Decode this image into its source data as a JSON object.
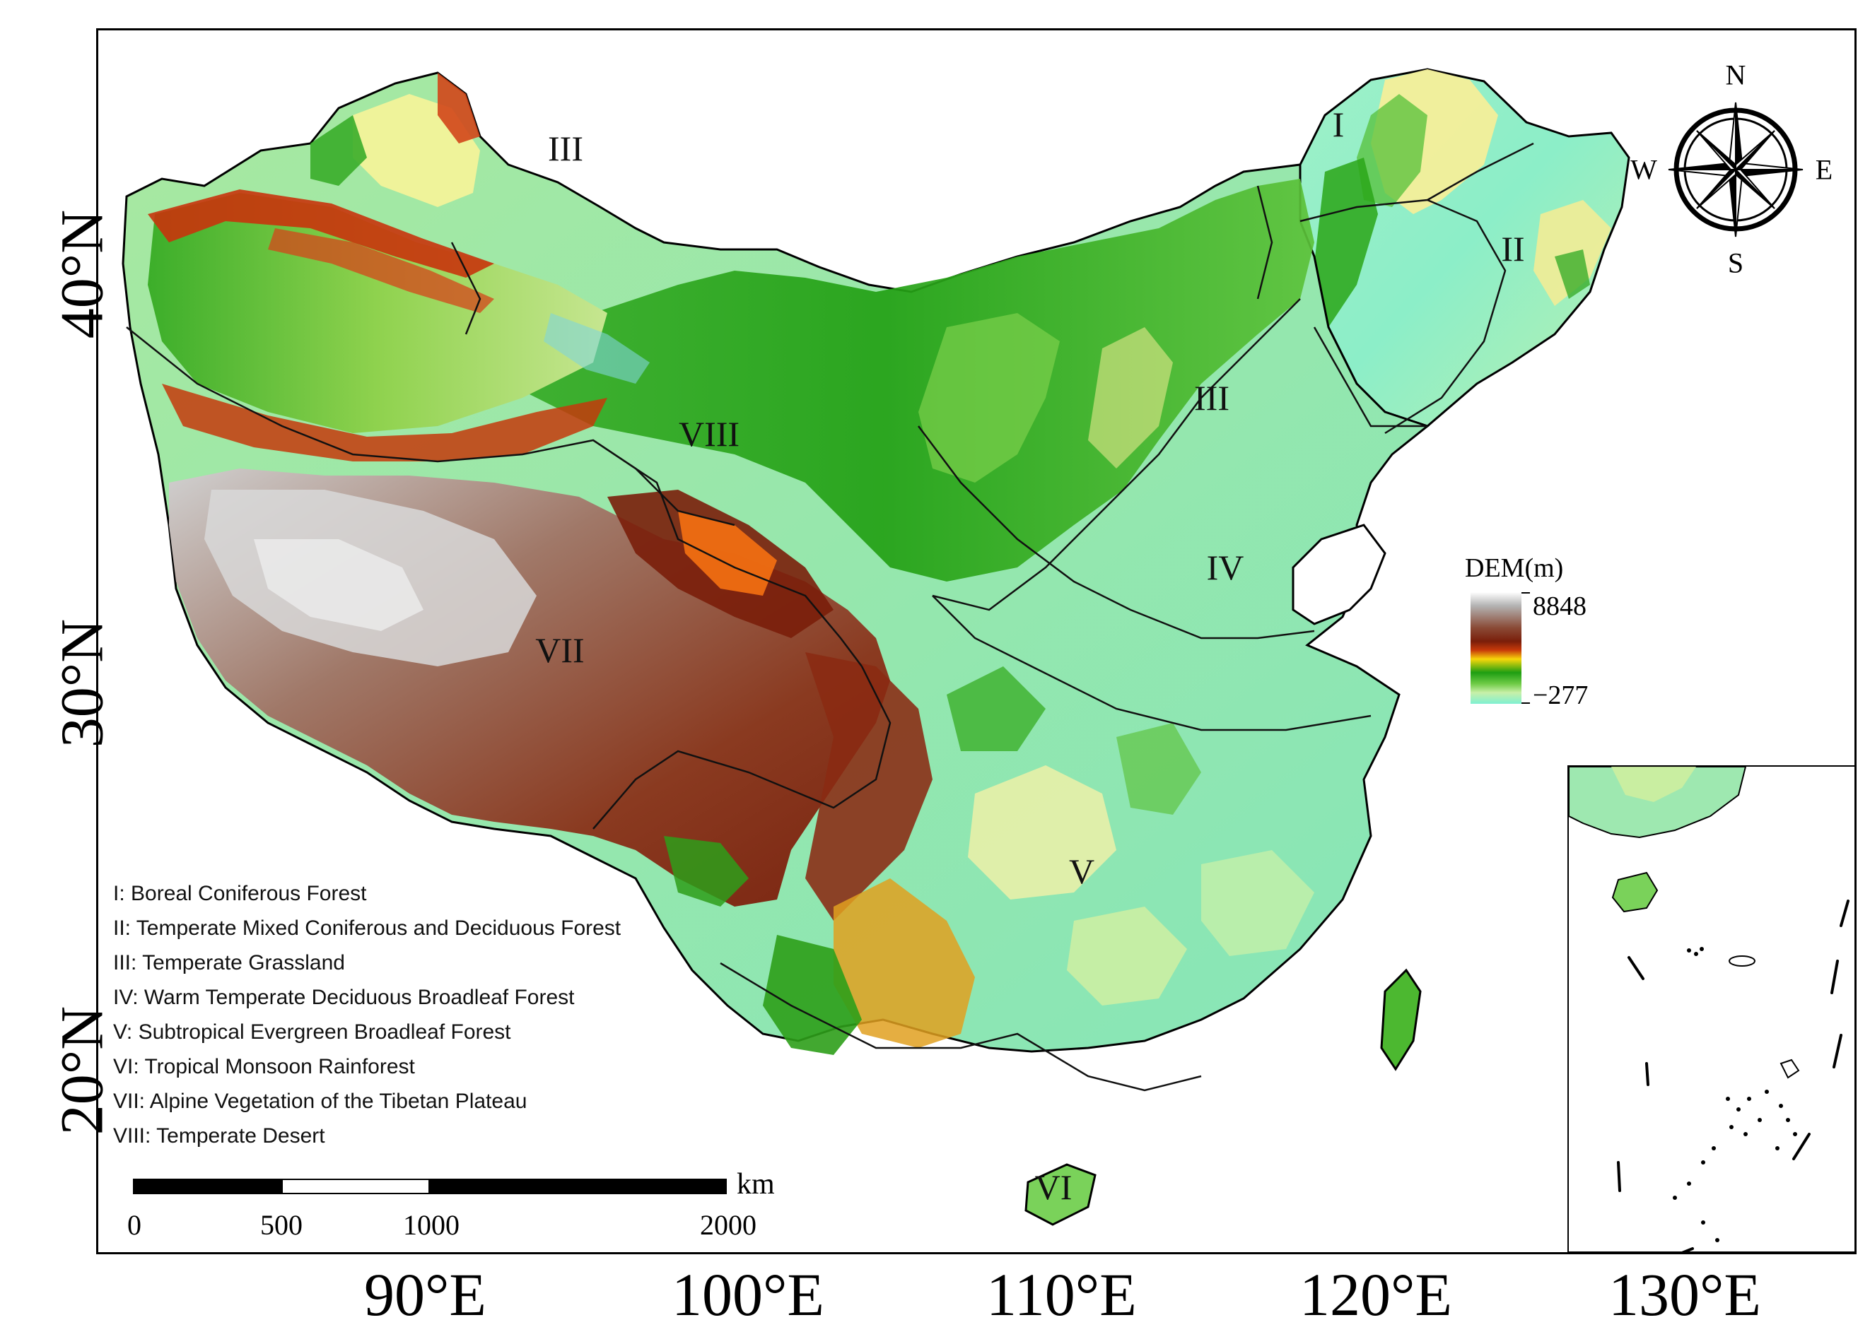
{
  "axes": {
    "lat_labels": [
      "40°N",
      "30°N",
      "20°N"
    ],
    "lon_labels": [
      "90°E",
      "100°E",
      "110°E",
      "120°E",
      "130°E"
    ]
  },
  "regions": [
    {
      "id": "I",
      "label": "I"
    },
    {
      "id": "II",
      "label": "II"
    },
    {
      "id": "III",
      "label": "III"
    },
    {
      "id": "III",
      "label": "III"
    },
    {
      "id": "IV",
      "label": "IV"
    },
    {
      "id": "V",
      "label": "V"
    },
    {
      "id": "VI",
      "label": "VI"
    },
    {
      "id": "VII",
      "label": "VII"
    },
    {
      "id": "VIII",
      "label": "VIII"
    }
  ],
  "legend": {
    "items": [
      "I: Boreal Coniferous Forest",
      "II: Temperate Mixed Coniferous and Deciduous Forest",
      "III: Temperate Grassland",
      "IV: Warm Temperate Deciduous Broadleaf Forest",
      "V: Subtropical Evergreen Broadleaf Forest",
      "VI: Tropical Monsoon Rainforest",
      "VII: Alpine Vegetation of the Tibetan Plateau",
      "VIII: Temperate Desert"
    ]
  },
  "dem": {
    "title": "DEM(m)",
    "max_label": "8848",
    "min_label": "−277",
    "colors": [
      "#ffffff",
      "#8a4a36",
      "#7a1e0a",
      "#f7d70a",
      "#1e9e12",
      "#7ff0d2"
    ]
  },
  "compass": {
    "n": "N",
    "s": "S",
    "e": "E",
    "w": "W"
  },
  "scalebar": {
    "unit": "km",
    "ticks": [
      "0",
      "500",
      "1000",
      "2000"
    ]
  }
}
